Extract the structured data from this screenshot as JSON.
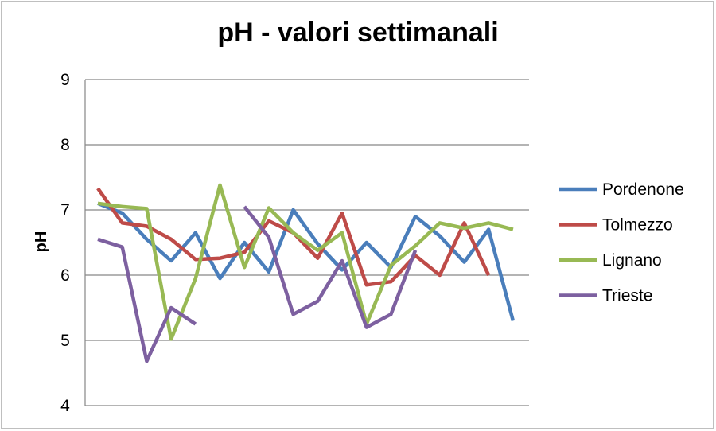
{
  "chart_data": {
    "type": "line",
    "title": "pH - valori settimanali",
    "xlabel": "",
    "ylabel": "pH",
    "ylim": [
      4,
      9
    ],
    "yticks": [
      4,
      5,
      6,
      7,
      8,
      9
    ],
    "grid": true,
    "legend_position": "right",
    "x": [
      1,
      2,
      3,
      4,
      5,
      6,
      7,
      8,
      9,
      10,
      11,
      12,
      13,
      14,
      15,
      16,
      17,
      18,
      19,
      20,
      21
    ],
    "series": [
      {
        "name": "Pordenone",
        "color": "#4a7ebb",
        "values": [
          7.1,
          6.95,
          6.55,
          6.22,
          6.65,
          5.95,
          6.5,
          6.05,
          7.0,
          6.48,
          6.08,
          6.5,
          6.12,
          6.9,
          6.6,
          6.2,
          6.7,
          5.3,
          null,
          null,
          null
        ]
      },
      {
        "name": "Tolmezzo",
        "color": "#be4b48",
        "values": [
          7.33,
          6.8,
          6.75,
          6.55,
          6.24,
          6.26,
          6.35,
          6.83,
          6.65,
          6.26,
          6.95,
          5.85,
          5.9,
          6.3,
          6.0,
          6.8,
          6.0,
          null,
          null,
          null,
          null
        ]
      },
      {
        "name": "Lignano",
        "color": "#98b954",
        "values": [
          7.1,
          7.05,
          7.02,
          5.02,
          5.95,
          7.38,
          6.12,
          7.03,
          6.65,
          6.38,
          6.65,
          5.25,
          6.15,
          6.45,
          6.8,
          6.72,
          6.8,
          6.7,
          null,
          null,
          null
        ]
      },
      {
        "name": "Trieste",
        "color": "#7d60a0",
        "values": [
          6.55,
          6.43,
          4.68,
          5.5,
          5.25,
          null,
          7.05,
          6.58,
          5.4,
          5.6,
          6.22,
          5.2,
          5.4,
          6.38,
          null,
          null,
          null,
          null,
          null,
          null,
          null
        ]
      }
    ]
  }
}
